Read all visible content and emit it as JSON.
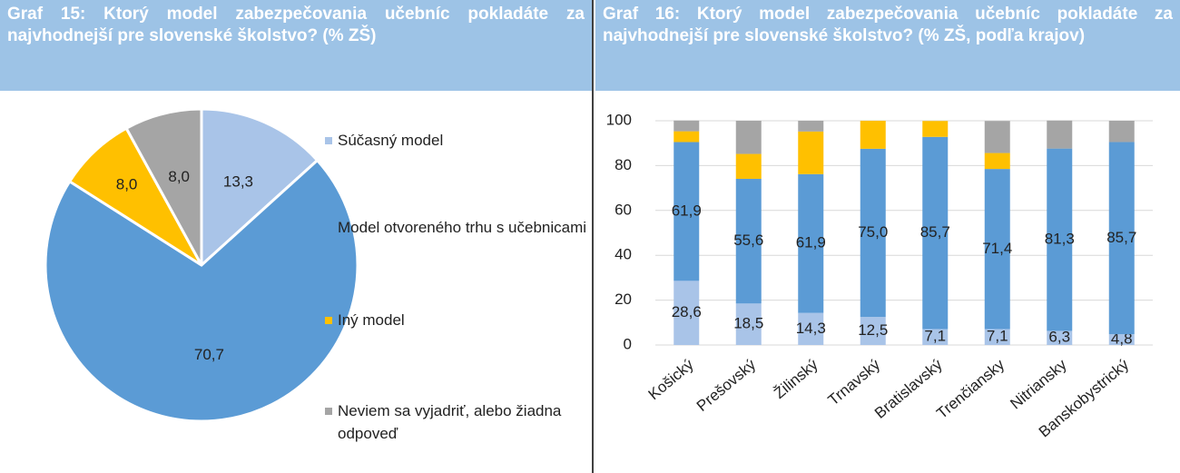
{
  "chart_data": [
    {
      "type": "pie",
      "title": "Graf 15: Ktorý model zabezpečovania učebníc pokladáte za najvhodnejší pre slovenské školstvo? (% ZŠ)",
      "categories": [
        "Súčasný model",
        "Model otvoreného trhu s učebnicami",
        "Iný model",
        "Neviem sa vyjadriť, alebo žiadna odpoveď"
      ],
      "values": [
        13.3,
        70.7,
        8.0,
        8.0
      ],
      "value_labels": [
        "13,3",
        "70,7",
        "8,0",
        "8,0"
      ],
      "colors": [
        "#a9c4e8",
        "#5b9bd5",
        "#ffc000",
        "#a5a5a5"
      ]
    },
    {
      "type": "bar",
      "title": "Graf 16: Ktorý model zabezpečovania učebníc pokladáte za najvhodnejší pre slovenské školstvo? (% ZŠ, podľa krajov)",
      "categories": [
        "Košický",
        "Prešovský",
        "Žilinský",
        "Trnavský",
        "Bratislavský",
        "Trenčiansky",
        "Nitriansky",
        "Banskobystrický"
      ],
      "stacked": true,
      "series": [
        {
          "color": "#a9c4e8",
          "values": [
            28.6,
            18.5,
            14.3,
            12.5,
            7.1,
            7.1,
            6.3,
            4.8
          ],
          "value_labels": [
            "28,6",
            "18,5",
            "14,3",
            "12,5",
            "7,1",
            "7,1",
            "6,3",
            "4,8"
          ]
        },
        {
          "color": "#5b9bd5",
          "values": [
            61.9,
            55.6,
            61.9,
            75.0,
            85.7,
            71.4,
            81.3,
            85.7
          ],
          "value_labels": [
            "61,9",
            "55,6",
            "61,9",
            "75,0",
            "85,7",
            "71,4",
            "81,3",
            "85,7"
          ]
        },
        {
          "color": "#ffc000",
          "values": [
            4.8,
            11.1,
            19.0,
            12.5,
            7.1,
            7.1,
            0,
            0
          ]
        },
        {
          "color": "#a5a5a5",
          "values": [
            4.8,
            14.8,
            4.8,
            0,
            0,
            14.3,
            12.5,
            9.5
          ]
        }
      ],
      "ylim": [
        0,
        100
      ],
      "yticks": [
        0,
        20,
        40,
        60,
        80,
        100
      ],
      "grid": true
    }
  ]
}
